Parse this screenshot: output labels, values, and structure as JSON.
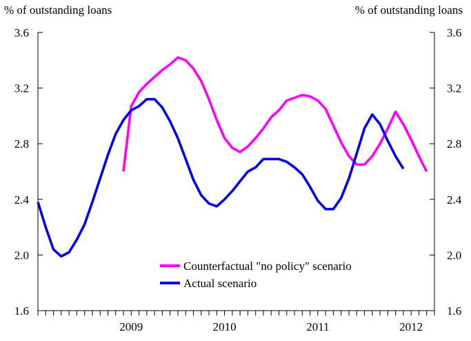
{
  "chart_data": {
    "type": "line",
    "y_unit_left": "% of outstanding loans",
    "y_unit_right": "% of outstanding loans",
    "ylim": [
      1.6,
      3.6
    ],
    "yticks": [
      1.6,
      2.0,
      2.4,
      2.8,
      3.2,
      3.6
    ],
    "ytick_labels": [
      "1.6",
      "2.0",
      "2.4",
      "2.8",
      "3.2",
      "3.6"
    ],
    "x_start": "2008-07",
    "x_end": "2012-10",
    "year_labels": [
      {
        "label": "2009",
        "center": "2009-07"
      },
      {
        "label": "2010",
        "center": "2010-07"
      },
      {
        "label": "2011",
        "center": "2011-07"
      },
      {
        "label": "2012",
        "center": "2012-07"
      }
    ],
    "legend_position": "bottom-center",
    "series": [
      {
        "name": "Counterfactual \"no policy\" scenario",
        "color": "#ff00ff",
        "points": [
          [
            "2009-06",
            2.6
          ],
          [
            "2009-07",
            3.07
          ],
          [
            "2009-08",
            3.17
          ],
          [
            "2009-09",
            3.23
          ],
          [
            "2009-10",
            3.28
          ],
          [
            "2009-11",
            3.33
          ],
          [
            "2009-12",
            3.37
          ],
          [
            "2010-01",
            3.42
          ],
          [
            "2010-02",
            3.4
          ],
          [
            "2010-03",
            3.34
          ],
          [
            "2010-04",
            3.25
          ],
          [
            "2010-05",
            3.12
          ],
          [
            "2010-06",
            2.97
          ],
          [
            "2010-07",
            2.84
          ],
          [
            "2010-08",
            2.77
          ],
          [
            "2010-09",
            2.74
          ],
          [
            "2010-10",
            2.78
          ],
          [
            "2010-11",
            2.84
          ],
          [
            "2010-12",
            2.91
          ],
          [
            "2011-01",
            2.99
          ],
          [
            "2011-02",
            3.04
          ],
          [
            "2011-03",
            3.11
          ],
          [
            "2011-04",
            3.13
          ],
          [
            "2011-05",
            3.15
          ],
          [
            "2011-06",
            3.14
          ],
          [
            "2011-07",
            3.11
          ],
          [
            "2011-08",
            3.05
          ],
          [
            "2011-09",
            2.93
          ],
          [
            "2011-10",
            2.81
          ],
          [
            "2011-11",
            2.71
          ],
          [
            "2011-12",
            2.65
          ],
          [
            "2012-01",
            2.65
          ],
          [
            "2012-02",
            2.71
          ],
          [
            "2012-03",
            2.8
          ],
          [
            "2012-04",
            2.91
          ],
          [
            "2012-05",
            3.03
          ],
          [
            "2012-06",
            2.94
          ],
          [
            "2012-07",
            2.83
          ],
          [
            "2012-08",
            2.71
          ],
          [
            "2012-09",
            2.6
          ]
        ]
      },
      {
        "name": "Actual scenario",
        "color": "#0000ee",
        "points": [
          [
            "2008-07",
            2.38
          ],
          [
            "2008-08",
            2.2
          ],
          [
            "2008-09",
            2.04
          ],
          [
            "2008-10",
            1.99
          ],
          [
            "2008-11",
            2.02
          ],
          [
            "2008-12",
            2.11
          ],
          [
            "2009-01",
            2.22
          ],
          [
            "2009-02",
            2.38
          ],
          [
            "2009-03",
            2.55
          ],
          [
            "2009-04",
            2.72
          ],
          [
            "2009-05",
            2.87
          ],
          [
            "2009-06",
            2.97
          ],
          [
            "2009-07",
            3.04
          ],
          [
            "2009-08",
            3.07
          ],
          [
            "2009-09",
            3.12
          ],
          [
            "2009-10",
            3.12
          ],
          [
            "2009-11",
            3.06
          ],
          [
            "2009-12",
            2.96
          ],
          [
            "2010-01",
            2.84
          ],
          [
            "2010-02",
            2.69
          ],
          [
            "2010-03",
            2.54
          ],
          [
            "2010-04",
            2.43
          ],
          [
            "2010-05",
            2.37
          ],
          [
            "2010-06",
            2.35
          ],
          [
            "2010-07",
            2.4
          ],
          [
            "2010-08",
            2.46
          ],
          [
            "2010-09",
            2.53
          ],
          [
            "2010-10",
            2.6
          ],
          [
            "2010-11",
            2.63
          ],
          [
            "2010-12",
            2.69
          ],
          [
            "2011-01",
            2.69
          ],
          [
            "2011-02",
            2.69
          ],
          [
            "2011-03",
            2.67
          ],
          [
            "2011-04",
            2.63
          ],
          [
            "2011-05",
            2.58
          ],
          [
            "2011-06",
            2.49
          ],
          [
            "2011-07",
            2.39
          ],
          [
            "2011-08",
            2.33
          ],
          [
            "2011-09",
            2.33
          ],
          [
            "2011-10",
            2.41
          ],
          [
            "2011-11",
            2.55
          ],
          [
            "2011-12",
            2.73
          ],
          [
            "2012-01",
            2.91
          ],
          [
            "2012-02",
            3.01
          ],
          [
            "2012-03",
            2.94
          ],
          [
            "2012-04",
            2.82
          ],
          [
            "2012-05",
            2.71
          ],
          [
            "2012-06",
            2.62
          ]
        ]
      }
    ]
  }
}
